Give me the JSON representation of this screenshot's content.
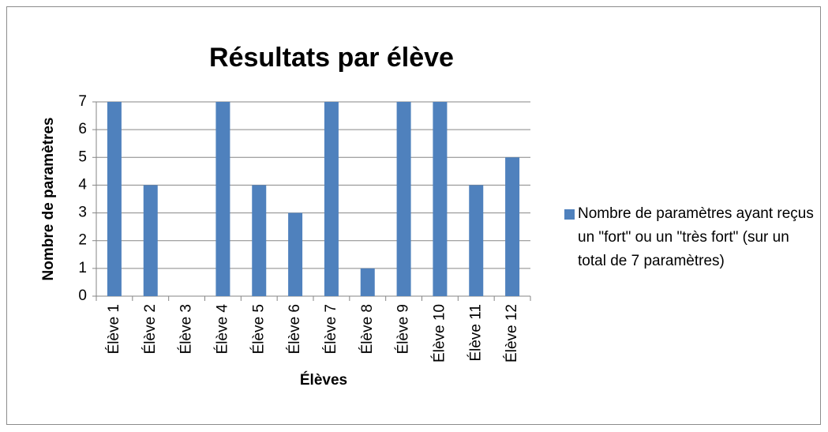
{
  "chart_data": {
    "type": "bar",
    "title": "Résultats par élève",
    "x_label": "Élèves",
    "y_label": "Nombre de paramètres",
    "categories": [
      "Élève 1",
      "Élève 2",
      "Élève 3",
      "Élève 4",
      "Élève 5",
      "Élève 6",
      "Élève 7",
      "Élève 8",
      "Élève 9",
      "Élève 10",
      "Élève 11",
      "Élève 12"
    ],
    "series": [
      {
        "name": "Nombre de paramètres ayant reçus un \"fort\" ou un \"très fort\" (sur un total de 7 paramètres)",
        "color": "#4f81bd",
        "values": [
          7,
          4,
          0,
          7,
          4,
          3,
          7,
          1,
          7,
          7,
          4,
          5
        ]
      }
    ],
    "ylim": [
      0,
      7
    ],
    "yticks": [
      0,
      1,
      2,
      3,
      4,
      5,
      6,
      7
    ],
    "grid": true,
    "legend": "right"
  }
}
